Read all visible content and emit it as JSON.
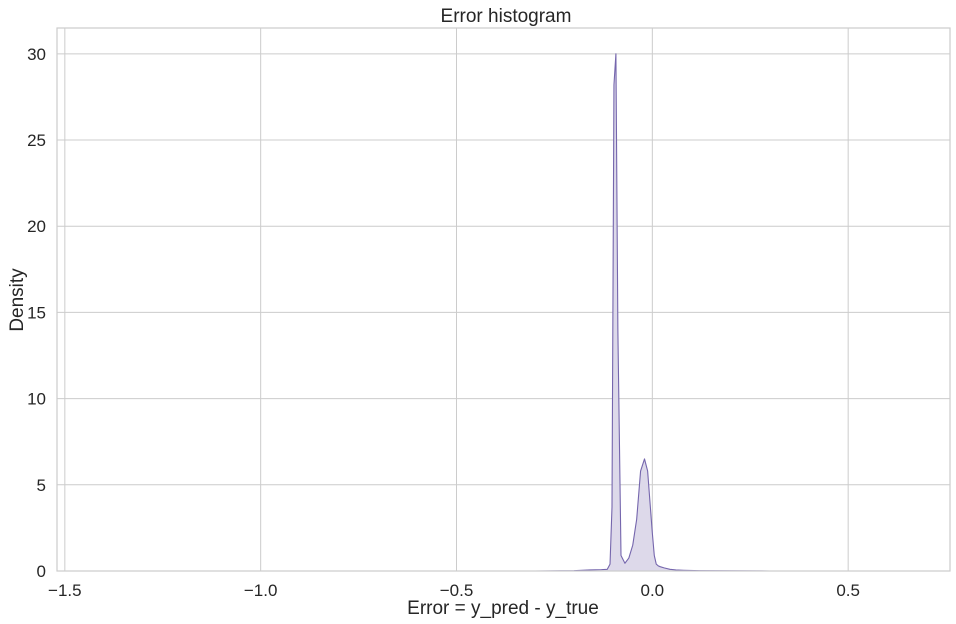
{
  "chart_data": {
    "type": "area",
    "title": "Error histogram",
    "xlabel": "Error = y_pred - y_true",
    "ylabel": "Density",
    "xlim": [
      -1.52,
      0.76
    ],
    "ylim": [
      0,
      31.5
    ],
    "xticks": [
      -1.5,
      -1.0,
      -0.5,
      0.0,
      0.5
    ],
    "xtick_labels": [
      "−1.5",
      "−1.0",
      "−0.5",
      "0.0",
      "0.5"
    ],
    "yticks": [
      0,
      5,
      10,
      15,
      20,
      25,
      30
    ],
    "ytick_labels": [
      "0",
      "5",
      "10",
      "15",
      "20",
      "25",
      "30"
    ],
    "grid": true,
    "colors": {
      "line": "#7566ad",
      "fill": "#ddd9ea",
      "grid": "#cccccc",
      "axes": "#cccccc"
    },
    "series": [
      {
        "x": [
          -1.5,
          -0.6,
          -0.3,
          -0.2,
          -0.16,
          -0.13,
          -0.115,
          -0.108,
          -0.103,
          -0.098,
          -0.093,
          -0.088,
          -0.08,
          -0.07,
          -0.06,
          -0.05,
          -0.04,
          -0.03,
          -0.02,
          -0.012,
          -0.006,
          0.0,
          0.005,
          0.01,
          0.015,
          0.02,
          0.03,
          0.045,
          0.06,
          0.08,
          0.12,
          0.2,
          0.3,
          0.5,
          0.7
        ],
        "y": [
          0.0,
          0.0,
          0.0,
          0.02,
          0.06,
          0.08,
          0.1,
          0.4,
          3.7,
          28.2,
          30.0,
          14.0,
          0.9,
          0.45,
          0.75,
          1.5,
          3.0,
          5.8,
          6.5,
          5.8,
          4.0,
          2.2,
          0.9,
          0.4,
          0.3,
          0.25,
          0.18,
          0.1,
          0.06,
          0.04,
          0.02,
          0.01,
          0.0,
          0.0,
          0.0
        ]
      }
    ]
  }
}
